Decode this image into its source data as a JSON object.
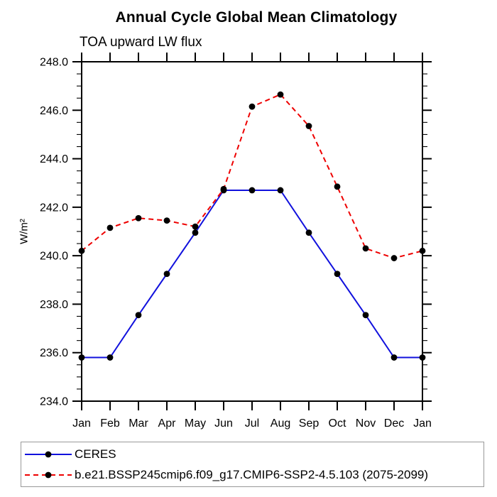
{
  "chart_data": {
    "type": "line",
    "title": "Annual Cycle Global Mean Climatology",
    "subtitle": "TOA upward LW flux",
    "ylabel": "W/m²",
    "categories": [
      "Jan",
      "Feb",
      "Mar",
      "Apr",
      "May",
      "Jun",
      "Jul",
      "Aug",
      "Sep",
      "Oct",
      "Nov",
      "Dec",
      "Jan"
    ],
    "ylim": [
      234.0,
      248.0
    ],
    "y_major_step": 2.0,
    "y_minor_step": 0.5,
    "y_tick_labels": [
      "234.0",
      "236.0",
      "238.0",
      "240.0",
      "242.0",
      "244.0",
      "246.0",
      "248.0"
    ],
    "grid": false,
    "legend_position": "bottom-left-box",
    "axis_color": "#000000",
    "marker": "filled-circle",
    "marker_color": "#000000",
    "series": [
      {
        "name": "CERES",
        "color": "#1111dd",
        "line_style": "solid",
        "values": [
          235.8,
          235.8,
          237.55,
          239.25,
          240.95,
          242.7,
          242.7,
          242.7,
          240.95,
          239.25,
          237.55,
          235.8,
          235.8
        ]
      },
      {
        "name": "b.e21.BSSP245cmip6.f09_g17.CMIP6-SSP2-4.5.103 (2075-2099)",
        "color": "#ee0000",
        "line_style": "dashed",
        "values": [
          240.2,
          241.15,
          241.55,
          241.45,
          241.2,
          242.75,
          246.15,
          246.65,
          245.35,
          242.85,
          240.3,
          239.9,
          240.2
        ]
      }
    ]
  }
}
